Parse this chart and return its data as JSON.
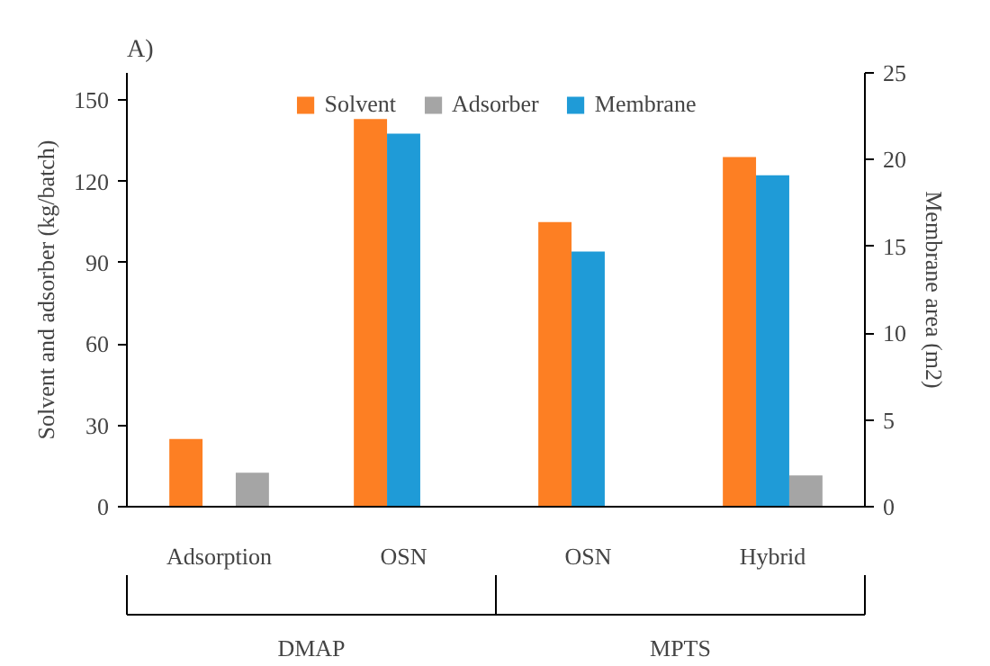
{
  "chart_data": {
    "type": "bar",
    "title": "A)",
    "ylabel": "Solvent and adsorber (kg/batch)",
    "y2label": "Membrane area (m2)",
    "categories": [
      "Adsorption",
      "OSN",
      "OSN",
      "Hybrid"
    ],
    "series": [
      {
        "name": "Solvent",
        "color": "#fd7f23",
        "values": [
          25,
          143,
          105,
          129
        ]
      },
      {
        "name": "Adsorber",
        "color": "#a5a5a5",
        "values": [
          12.5,
          null,
          null,
          11.5
        ]
      },
      {
        "name": "Membrane",
        "color": "#1f9bd7",
        "values": [
          null,
          21.5,
          14.7,
          19.1
        ],
        "axis": "y2"
      }
    ],
    "ylim": [
      0,
      160
    ],
    "yticks": [
      0,
      30,
      60,
      90,
      120,
      150
    ],
    "y2lim": [
      0,
      25
    ],
    "y2ticks": [
      0,
      5,
      10,
      15,
      20,
      25
    ],
    "annotations": [
      "DMAP",
      "MPTS"
    ],
    "legend": "top",
    "grid": false
  }
}
